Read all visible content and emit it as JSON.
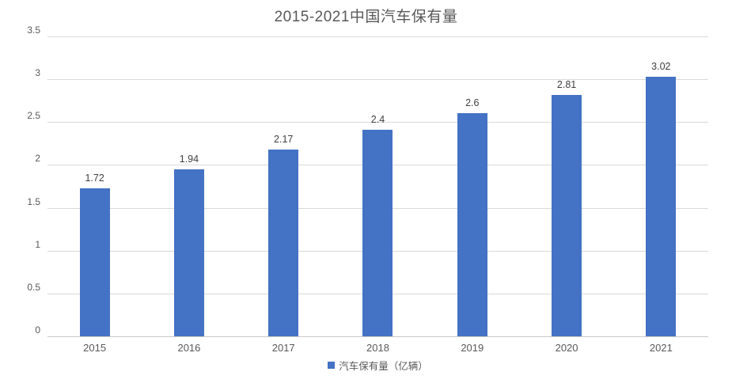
{
  "chart_data": {
    "type": "bar",
    "title": "2015-2021中国汽车保有量",
    "categories": [
      "2015",
      "2016",
      "2017",
      "2018",
      "2019",
      "2020",
      "2021"
    ],
    "series": [
      {
        "name": "汽车保有量（亿辆）",
        "values": [
          1.72,
          1.94,
          2.17,
          2.4,
          2.6,
          2.81,
          3.02
        ],
        "value_labels": [
          "1.72",
          "1.94",
          "2.17",
          "2.4",
          "2.6",
          "2.81",
          "3.02"
        ],
        "color": "#4472C4"
      }
    ],
    "xlabel": "",
    "ylabel": "",
    "ylim": [
      0,
      3.5
    ],
    "yticks": [
      0,
      0.5,
      1,
      1.5,
      2,
      2.5,
      3,
      3.5
    ],
    "ytick_labels": [
      "0",
      "0.5",
      "1",
      "1.5",
      "2",
      "2.5",
      "3",
      "3.5"
    ],
    "grid": true,
    "legend_position": "bottom",
    "legend": [
      {
        "label": "汽车保有量（亿辆）",
        "color": "#4472C4"
      }
    ],
    "colors": {
      "bar": "#4472C4",
      "title_text": "#595959",
      "axis_text": "#595959",
      "data_label_text": "#404040",
      "gridline": "#D9D9D9",
      "axis_line": "#C9C9C9",
      "background": "#FFFFFF"
    }
  }
}
